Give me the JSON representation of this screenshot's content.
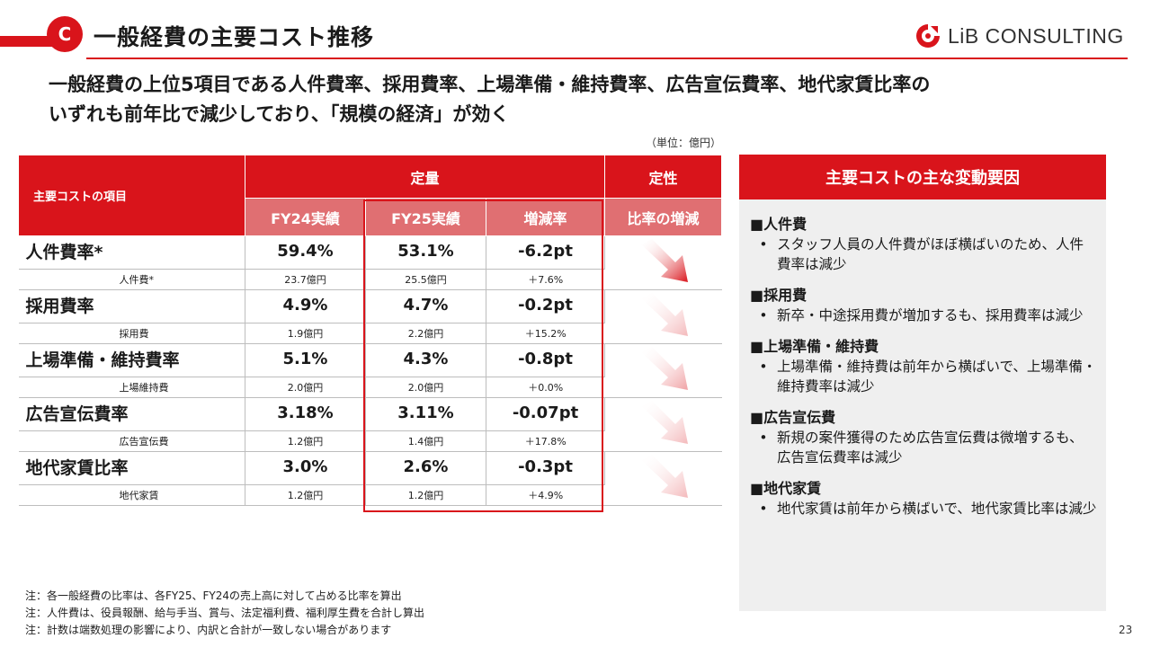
{
  "header": {
    "badge": "C",
    "title": "一般経費の主要コスト推移",
    "logo_text": "LiB CONSULTING"
  },
  "headline": {
    "line1": "一般経費の上位5項目である人件費率、採用費率、上場準備・維持費率、広告宣伝費率、地代家賃比率の",
    "line2": "いずれも前年比で減少しており、「規模の経済」が効く"
  },
  "unit_note": "（単位：億円）",
  "table": {
    "item_header": "主要コストの項目",
    "group_quant": "定量",
    "group_qual": "定性",
    "col_fy24": "FY24実績",
    "col_fy25": "FY25実績",
    "col_change": "増減率",
    "col_ratio": "比率の増減",
    "rows": [
      {
        "name": "人件費率*",
        "fy24": "59.4%",
        "fy25": "53.1%",
        "change": "-6.2pt",
        "sub_name": "人件費*",
        "sub_fy24": "23.7億円",
        "sub_fy25": "25.5億円",
        "sub_change": "＋7.6%",
        "arrow_strength": 1.0
      },
      {
        "name": "採用費率",
        "fy24": "4.9%",
        "fy25": "4.7%",
        "change": "-0.2pt",
        "sub_name": "採用費",
        "sub_fy24": "1.9億円",
        "sub_fy25": "2.2億円",
        "sub_change": "＋15.2%",
        "arrow_strength": 0.3
      },
      {
        "name": "上場準備・維持費率",
        "fy24": "5.1%",
        "fy25": "4.3%",
        "change": "-0.8pt",
        "sub_name": "上場維持費",
        "sub_fy24": "2.0億円",
        "sub_fy25": "2.0億円",
        "sub_change": "＋0.0%",
        "arrow_strength": 0.4
      },
      {
        "name": "広告宣伝費率",
        "fy24": "3.18%",
        "fy25": "3.11%",
        "change": "-0.07pt",
        "sub_name": "広告宣伝費",
        "sub_fy24": "1.2億円",
        "sub_fy25": "1.4億円",
        "sub_change": "＋17.8%",
        "arrow_strength": 0.3
      },
      {
        "name": "地代家賃比率",
        "fy24": "3.0%",
        "fy25": "2.6%",
        "change": "-0.3pt",
        "sub_name": "地代家賃",
        "sub_fy24": "1.2億円",
        "sub_fy25": "1.2億円",
        "sub_change": "＋4.9%",
        "arrow_strength": 0.3
      }
    ]
  },
  "side": {
    "title": "主要コストの主な変動要因",
    "sections": [
      {
        "title": "■人件費",
        "text": "スタッフ人員の人件費がほぼ横ばいのため、人件費率は減少"
      },
      {
        "title": "■採用費",
        "text": "新卒・中途採用費が増加するも、採用費率は減少"
      },
      {
        "title": "■上場準備・維持費",
        "text": "上場準備・維持費は前年から横ばいで、上場準備・維持費率は減少"
      },
      {
        "title": "■広告宣伝費",
        "text": "新規の案件獲得のため広告宣伝費は微増するも、広告宣伝費率は減少"
      },
      {
        "title": "■地代家賃",
        "text": "地代家賃は前年から横ばいで、地代家賃比率は減少"
      }
    ]
  },
  "notes": [
    "注：各一般経費の比率は、各FY25、FY24の売上高に対して占める比率を算出",
    "注：人件費は、役員報酬、給与手当、賞与、法定福利費、福利厚生費を合計し算出",
    "注：計数は端数処理の影響により、内訳と合計が一致しない場合があります"
  ],
  "page_number": "23",
  "colors": {
    "accent": "#d9141b",
    "sub_header": "#e06f72",
    "panel_bg": "#efefef"
  }
}
